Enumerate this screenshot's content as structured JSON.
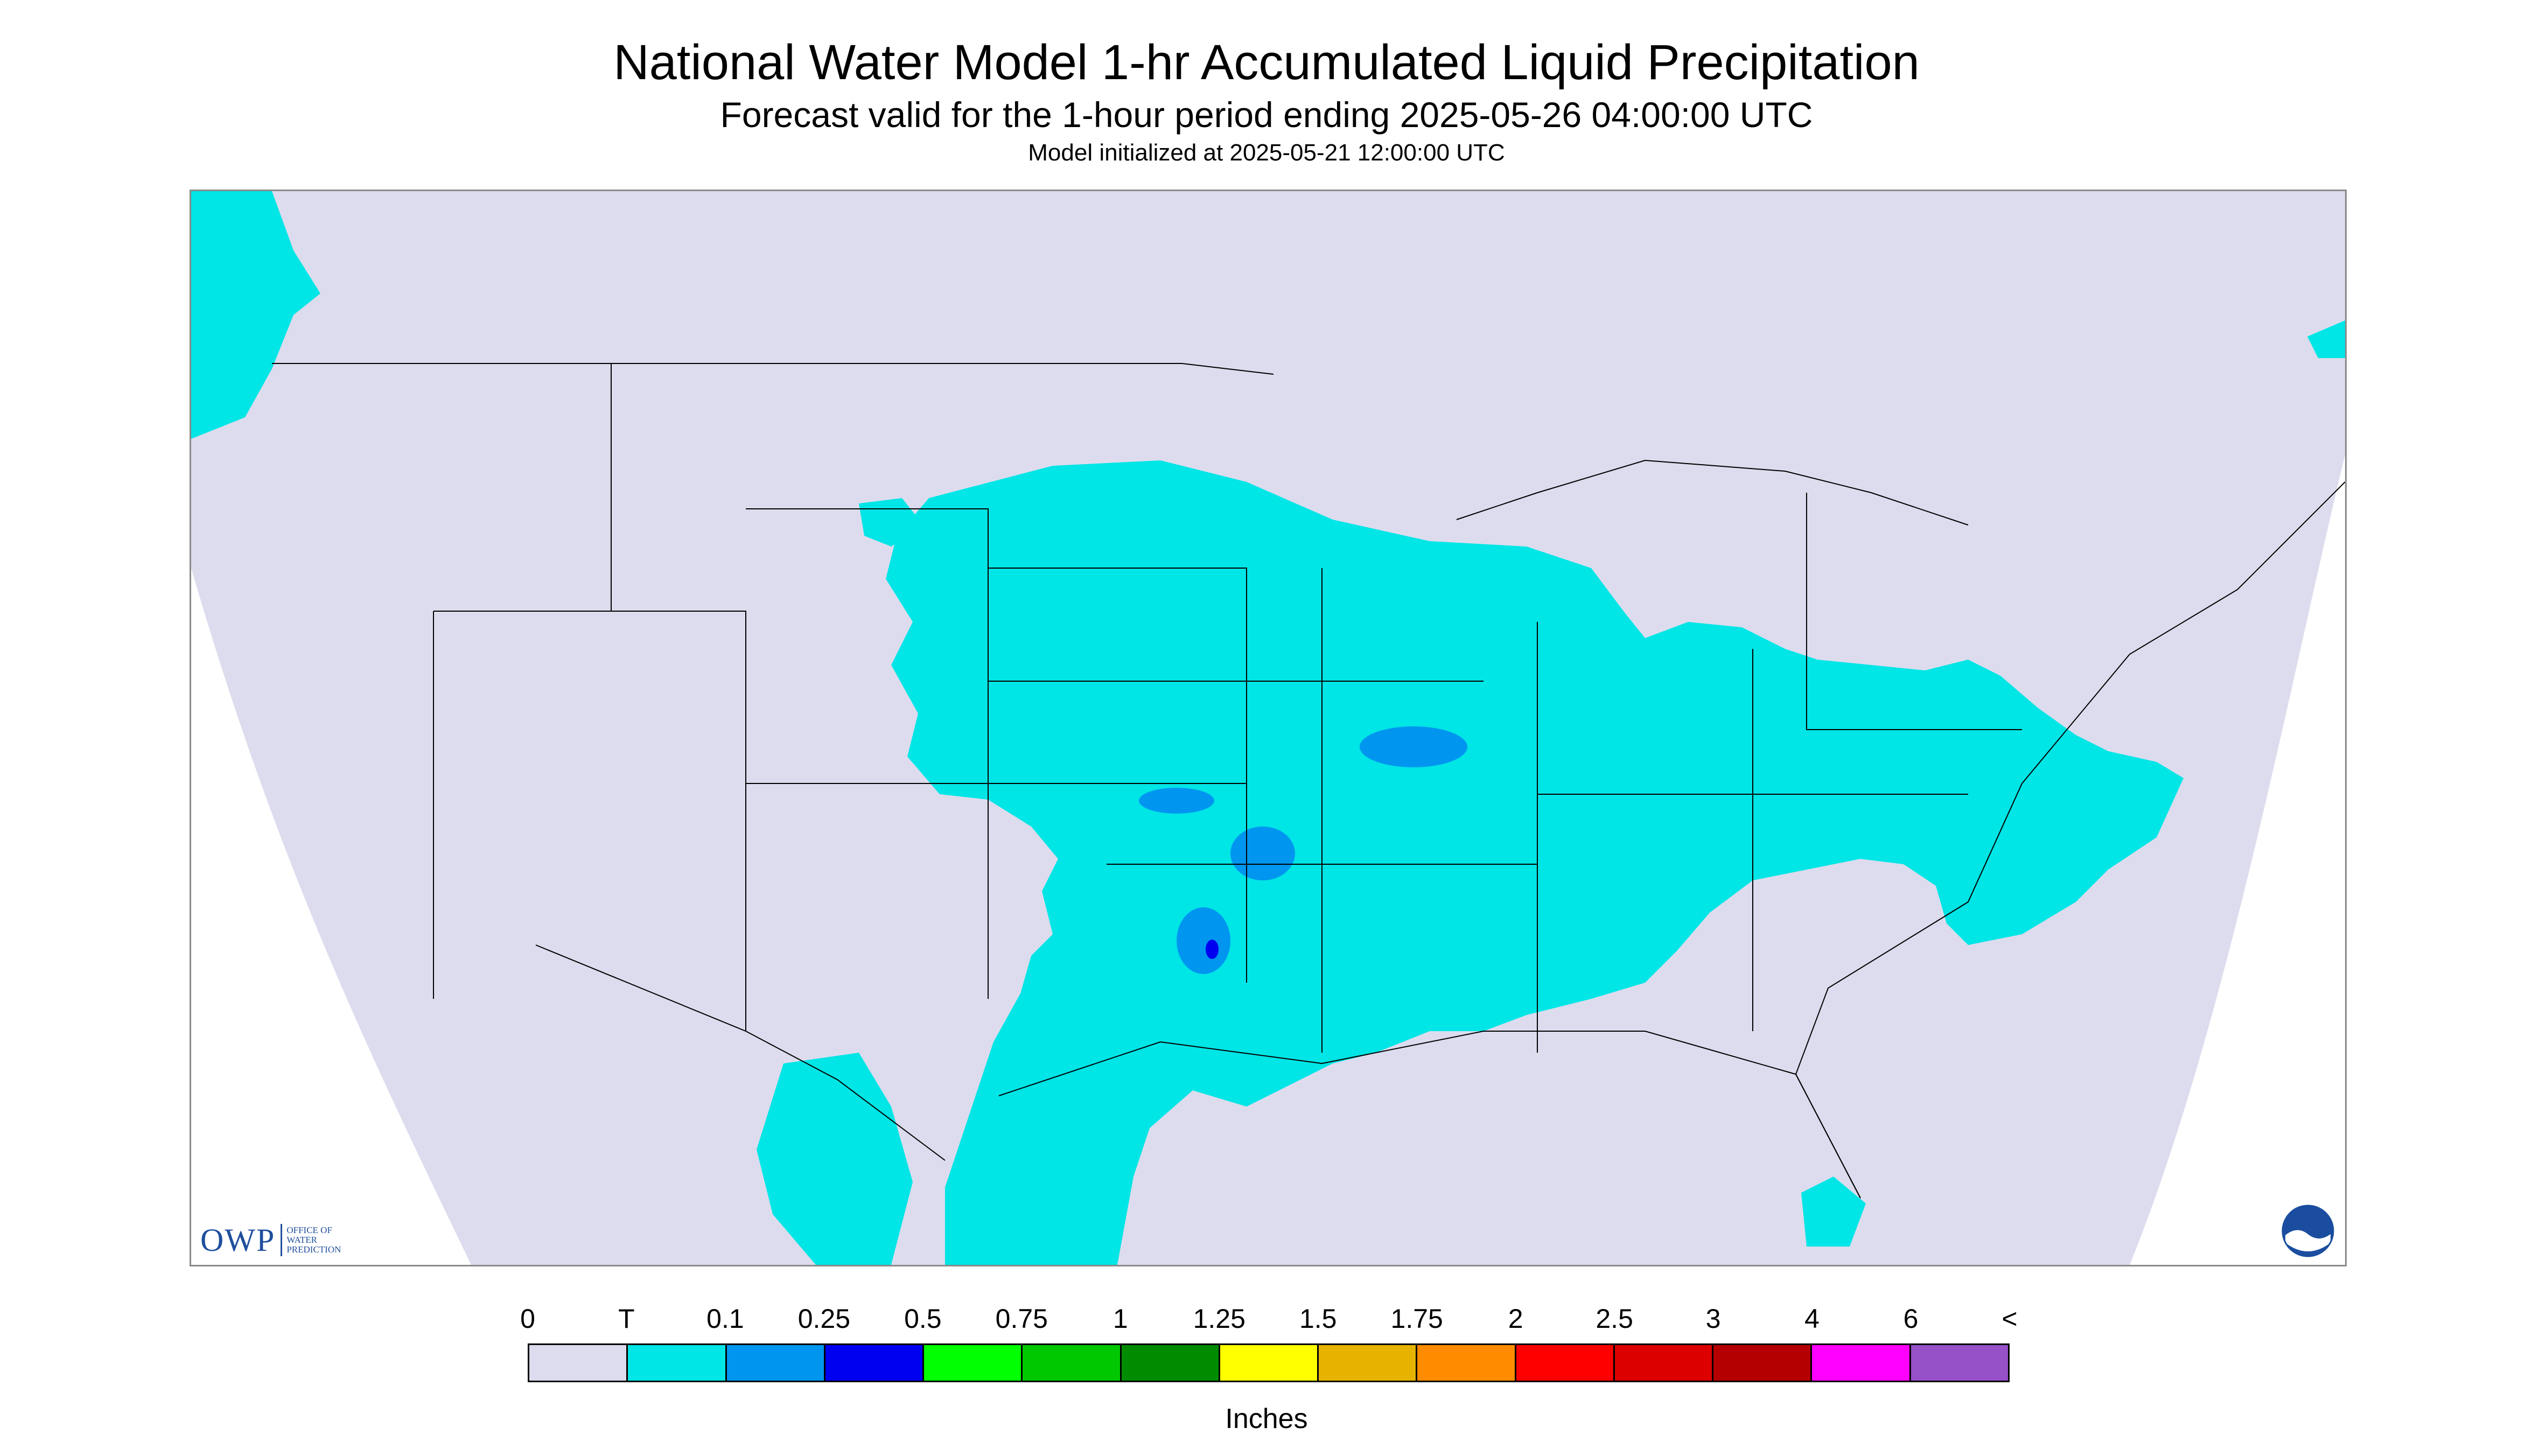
{
  "title": "National Water Model 1-hr Accumulated Liquid Precipitation",
  "subtitle": "Forecast valid for the 1-hour period ending 2025-05-26 04:00:00 UTC",
  "init_text": "Model initialized at 2025-05-21 12:00:00 UTC",
  "logos": {
    "owp_main": "OWP",
    "owp_sub": [
      "OFFICE OF",
      "WATER",
      "PREDICTION"
    ],
    "noaa": "NOAA"
  },
  "colors": {
    "background": "#dcdcee",
    "trace": "#00e5e5",
    "p01": "#0096f0",
    "p025": "#0000f0",
    "border": "#000000"
  },
  "legend": {
    "labels": [
      "0",
      "T",
      "0.1",
      "0.25",
      "0.5",
      "0.75",
      "1",
      "1.25",
      "1.5",
      "1.75",
      "2",
      "2.5",
      "3",
      "4",
      "6",
      "<"
    ],
    "colors": [
      "#dcdcee",
      "#00e5e5",
      "#0096f0",
      "#0000f0",
      "#00ff00",
      "#00c800",
      "#008c00",
      "#ffff00",
      "#e6b400",
      "#ff8c00",
      "#ff0000",
      "#dc0000",
      "#b40000",
      "#ff00ff",
      "#9650c8"
    ],
    "units": "Inches"
  }
}
